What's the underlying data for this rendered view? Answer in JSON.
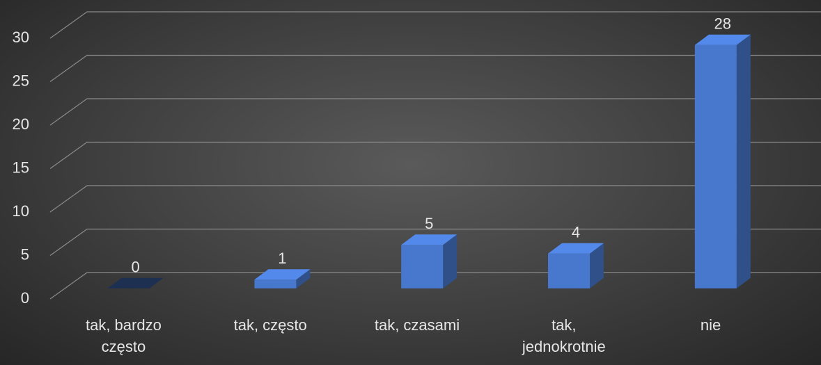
{
  "chart_data": {
    "type": "bar3d",
    "categories": [
      "tak, bardzo często",
      "tak, często",
      "tak, czasami",
      "tak, jednokrotnie",
      "nie"
    ],
    "values": [
      0,
      1,
      5,
      4,
      28
    ],
    "color": "#4472c4",
    "ylim": [
      0,
      30
    ],
    "yticks": [
      0,
      5,
      10,
      15,
      20,
      25,
      30
    ],
    "grid": true
  }
}
